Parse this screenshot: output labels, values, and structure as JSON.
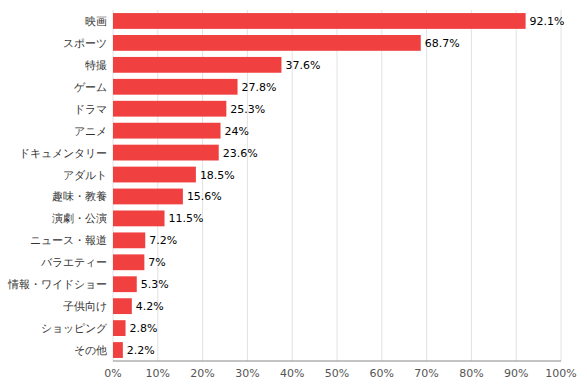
{
  "chart_data": {
    "type": "bar",
    "orientation": "horizontal",
    "categories": [
      "映画",
      "スポーツ",
      "特撮",
      "ゲーム",
      "ドラマ",
      "アニメ",
      "ドキュメンタリー",
      "アダルト",
      "趣味・教養",
      "演劇・公演",
      "ニュース・報道",
      "バラエティー",
      "情報・ワイドショー",
      "子供向け",
      "ショッピング",
      "その他"
    ],
    "values": [
      92.1,
      68.7,
      37.6,
      27.8,
      25.3,
      24.0,
      23.6,
      18.5,
      15.6,
      11.5,
      7.2,
      7.0,
      5.3,
      4.2,
      2.8,
      2.2
    ],
    "value_labels": [
      "92.1%",
      "68.7%",
      "37.6%",
      "27.8%",
      "25.3%",
      "24%",
      "23.6%",
      "18.5%",
      "15.6%",
      "11.5%",
      "7.2%",
      "7%",
      "5.3%",
      "4.2%",
      "2.8%",
      "2.2%"
    ],
    "data_labels": true,
    "color": "#f04040",
    "xlim": [
      0,
      100
    ],
    "xticks": [
      {
        "value": 0,
        "label": "0%"
      },
      {
        "value": 10,
        "label": "10%"
      },
      {
        "value": 20,
        "label": "20%"
      },
      {
        "value": 30,
        "label": "30%"
      },
      {
        "value": 40,
        "label": "40%"
      },
      {
        "value": 50,
        "label": "50%"
      },
      {
        "value": 60,
        "label": "60%"
      },
      {
        "value": 70,
        "label": "70%"
      },
      {
        "value": 80,
        "label": "80%"
      },
      {
        "value": 90,
        "label": "90%"
      },
      {
        "value": 100,
        "label": "100%"
      }
    ],
    "grid": true
  }
}
